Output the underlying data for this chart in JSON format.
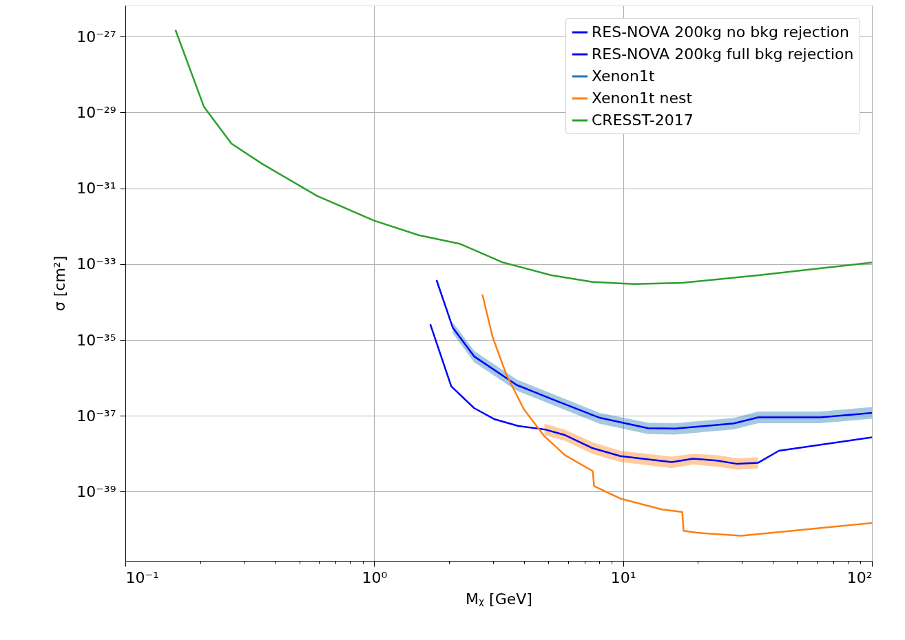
{
  "chart_data": {
    "type": "line",
    "xlabel": "Mᵪ [GeV]",
    "ylabel": "σ [cm²]",
    "log": "xy",
    "grid": true,
    "legend": "top right",
    "xlim": [
      0.1,
      100
    ],
    "ylim": [
      1.5e-41,
      6.6e-27
    ],
    "xticks": [
      {
        "value": 0.1,
        "label": "10⁻¹"
      },
      {
        "value": 0.2,
        "label": null
      },
      {
        "value": 0.3,
        "label": null
      },
      {
        "value": 0.4,
        "label": null
      },
      {
        "value": 0.5,
        "label": null
      },
      {
        "value": 0.6,
        "label": null
      },
      {
        "value": 0.7,
        "label": null
      },
      {
        "value": 0.8,
        "label": null
      },
      {
        "value": 0.9,
        "label": null
      },
      {
        "value": 1,
        "label": "10⁰"
      },
      {
        "value": 2,
        "label": null
      },
      {
        "value": 3,
        "label": null
      },
      {
        "value": 4,
        "label": null
      },
      {
        "value": 5,
        "label": null
      },
      {
        "value": 6,
        "label": null
      },
      {
        "value": 7,
        "label": null
      },
      {
        "value": 8,
        "label": null
      },
      {
        "value": 9,
        "label": null
      },
      {
        "value": 10,
        "label": "10¹"
      },
      {
        "value": 20,
        "label": null
      },
      {
        "value": 30,
        "label": null
      },
      {
        "value": 40,
        "label": null
      },
      {
        "value": 50,
        "label": null
      },
      {
        "value": 60,
        "label": null
      },
      {
        "value": 70,
        "label": null
      },
      {
        "value": 80,
        "label": null
      },
      {
        "value": 90,
        "label": null
      },
      {
        "value": 100,
        "label": "10²"
      }
    ],
    "yticks": [
      {
        "value": 1e-39,
        "label": "10⁻³⁹"
      },
      {
        "value": 1e-37,
        "label": "10⁻³⁷"
      },
      {
        "value": 1e-35,
        "label": "10⁻³⁵"
      },
      {
        "value": 1e-33,
        "label": "10⁻³³"
      },
      {
        "value": 1e-31,
        "label": "10⁻³¹"
      },
      {
        "value": 1e-29,
        "label": "10⁻²⁹"
      },
      {
        "value": 1e-27,
        "label": "10⁻²⁷"
      }
    ],
    "series": [
      {
        "name": "RES-NOVA 200kg no bkg rejection",
        "color": "#0000ff",
        "x": [
          1.78,
          2.07,
          2.52,
          3.74,
          5.15,
          8.05,
          12.6,
          16.2,
          27.9,
          34.9,
          62,
          100
        ],
        "values": [
          3.8e-34,
          2.1e-35,
          3.7e-36,
          6.5e-37,
          2.8e-37,
          8.9e-38,
          4.7e-38,
          4.6e-38,
          6.3e-38,
          9.1e-38,
          9.1e-38,
          1.2e-37
        ]
      },
      {
        "name": "RES-NOVA 200kg full bkg rejection",
        "color": "#0000ff",
        "x": [
          1.68,
          2.04,
          2.52,
          3.05,
          3.79,
          4.83,
          5.85,
          7.55,
          9.75,
          15.7,
          19.1,
          23.8,
          28.8,
          34.9,
          42.3,
          100
        ],
        "values": [
          2.6e-35,
          6e-37,
          1.6e-37,
          8.1e-38,
          5.4e-38,
          4.4e-38,
          3.1e-38,
          1.4e-38,
          8.7e-39,
          6e-39,
          7.4e-39,
          6.6e-39,
          5.4e-39,
          5.8e-39,
          1.2e-38,
          2.7e-38
        ]
      },
      {
        "name": "Xenon1t",
        "color": "#1f77b4",
        "x": [
          2.07,
          2.52,
          3.74,
          5.15,
          8.05,
          12.6,
          16.2,
          27.9,
          34.9,
          62,
          100
        ],
        "values": [
          null,
          null,
          null,
          null,
          null,
          null,
          null,
          null,
          null,
          null,
          null
        ],
        "lower": [
          1.5e-35,
          2.6e-36,
          4.6e-37,
          2e-37,
          6.2e-38,
          3.3e-38,
          3.2e-38,
          4.4e-38,
          6.4e-38,
          6.4e-38,
          8.4e-38
        ],
        "upper": [
          2.9e-35,
          5.2e-36,
          9.1e-37,
          3.9e-37,
          1.2e-37,
          6.6e-38,
          6.4e-38,
          8.8e-38,
          1.3e-37,
          1.3e-37,
          1.7e-37
        ]
      },
      {
        "name": "Xenon1t nest",
        "color": "#ff7f0e",
        "x": [
          2.72,
          2.99,
          3.4,
          3.99,
          4.83,
          5.85,
          7.55,
          7.65,
          9.75,
          14.3,
          17.3,
          17.5,
          19.7,
          29.8,
          48,
          100
        ],
        "values": [
          1.6e-34,
          1.2e-35,
          1.2e-36,
          1.5e-37,
          2.9e-38,
          9.1e-39,
          3.5e-39,
          1.4e-39,
          6.6e-40,
          3.4e-40,
          2.9e-40,
          9.3e-41,
          8.3e-41,
          6.9e-41,
          9.3e-41,
          1.5e-40
        ]
      },
      {
        "name": "CRESST-2017",
        "color": "#2ca02c",
        "x": [
          0.159,
          0.207,
          0.267,
          0.353,
          0.589,
          1.0,
          1.51,
          2.22,
          3.3,
          5.15,
          7.55,
          11.1,
          17.3,
          34.9,
          100
        ],
        "values": [
          1.5e-27,
          1.4e-29,
          1.5e-30,
          4.5e-31,
          6.3e-32,
          1.4e-32,
          5.8e-33,
          3.4e-33,
          1.1e-33,
          5.1e-34,
          3.4e-34,
          3e-34,
          3.2e-34,
          5.1e-34,
          1.1e-33
        ]
      },
      {
        "color": "#ff7f0e",
        "x": [
          4.83,
          5.85,
          7.55,
          9.75,
          15.7,
          19.1,
          23.8,
          28.8,
          34.9
        ],
        "values": [
          null,
          null,
          null,
          null,
          null,
          null,
          null,
          null,
          null
        ],
        "lower": [
          3.1e-38,
          2.2e-38,
          9.8e-39,
          6.1e-39,
          4.2e-39,
          5.2e-39,
          4.6e-39,
          3.8e-39,
          4.1e-39
        ],
        "upper": [
          6.2e-38,
          4.3e-38,
          2e-38,
          1.2e-38,
          8.4e-39,
          1e-38,
          9.2e-39,
          7.6e-39,
          8.1e-39
        ]
      }
    ]
  }
}
